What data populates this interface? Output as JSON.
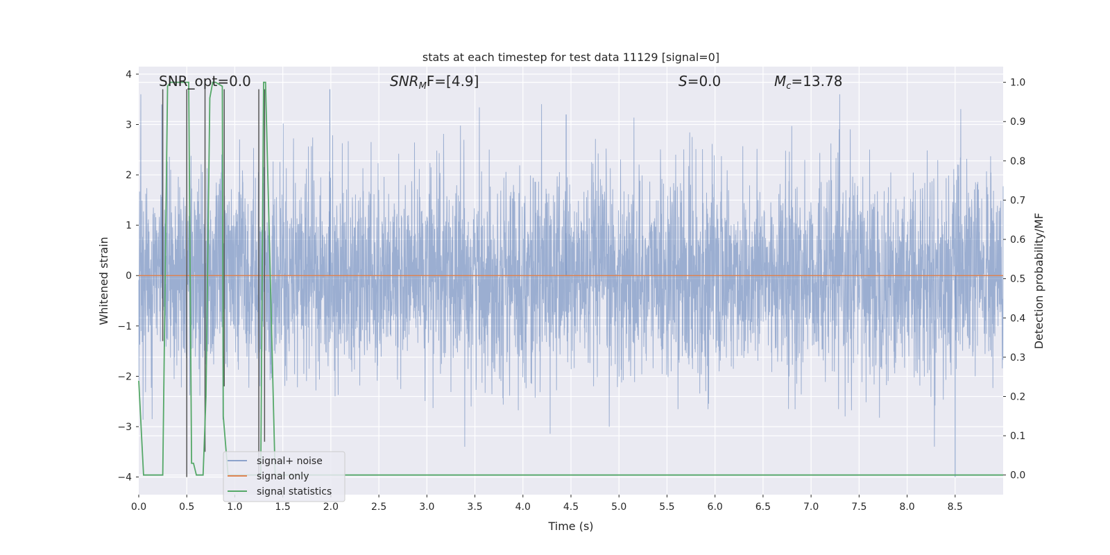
{
  "chart_data": {
    "type": "line",
    "title": "stats at each timestep for test data 11129 [signal=0]",
    "xlabel": "Time (s)",
    "ylabel": "Whitened strain",
    "y2label": "Detection probability/MF",
    "xlim": [
      0.0,
      9.0
    ],
    "ylim": [
      -4.35,
      4.15
    ],
    "y2lim": [
      -0.05,
      1.04
    ],
    "xticks": [
      0.0,
      0.5,
      1.0,
      1.5,
      2.0,
      2.5,
      3.0,
      3.5,
      4.0,
      4.5,
      5.0,
      5.5,
      6.0,
      6.5,
      7.0,
      7.5,
      8.0,
      8.5
    ],
    "xtick_labels": [
      "0.0",
      "0.5",
      "1.0",
      "1.5",
      "2.0",
      "2.5",
      "3.0",
      "3.5",
      "4.0",
      "4.5",
      "5.0",
      "5.5",
      "6.0",
      "6.5",
      "7.0",
      "7.5",
      "8.0",
      "8.5"
    ],
    "yticks": [
      -4,
      -3,
      -2,
      -1,
      0,
      1,
      2,
      3,
      4
    ],
    "ytick_labels": [
      "−4",
      "−3",
      "−2",
      "−1",
      "0",
      "1",
      "2",
      "3",
      "4"
    ],
    "y2ticks": [
      0.0,
      0.1,
      0.2,
      0.3,
      0.4,
      0.5,
      0.6,
      0.7,
      0.8,
      0.9,
      1.0
    ],
    "y2tick_labels": [
      "0.0",
      "0.1",
      "0.2",
      "0.3",
      "0.4",
      "0.5",
      "0.6",
      "0.7",
      "0.8",
      "0.9",
      "1.0"
    ],
    "grid": true,
    "legend_position": "lower-left",
    "colors": {
      "noise": "#4c72b0",
      "signal": "#dd8452",
      "stats": "#55a868",
      "marker": "#555555",
      "plot_bg": "#eaeaf2",
      "grid": "#ffffff"
    },
    "series": [
      {
        "name": "signal+ noise",
        "axis": "left",
        "description_envelope": "dense noise roughly within ±3.5, mostly ±2",
        "peaks": [
          {
            "x": 0.24,
            "y": 3.4
          },
          {
            "x": 1.99,
            "y": 3.7
          },
          {
            "x": 4.45,
            "y": 3.2
          },
          {
            "x": 8.5,
            "y": -4.0
          }
        ]
      },
      {
        "name": "signal only",
        "axis": "left",
        "x": [
          0.0,
          9.0
        ],
        "y": [
          0.0,
          0.0
        ]
      },
      {
        "name": "signal statistics",
        "axis": "right",
        "x": [
          0.0,
          0.05,
          0.1,
          0.25,
          0.27,
          0.3,
          0.33,
          0.4,
          0.5,
          0.52,
          0.55,
          0.57,
          0.6,
          0.67,
          0.7,
          0.74,
          0.77,
          0.8,
          0.87,
          0.88,
          0.93,
          1.27,
          1.3,
          1.32,
          1.42,
          1.5,
          9.0
        ],
        "y": [
          0.24,
          0.0,
          0.0,
          0.0,
          0.4,
          0.99,
          1.0,
          1.0,
          1.0,
          1.0,
          0.03,
          0.03,
          0.0,
          0.0,
          0.2,
          0.96,
          1.0,
          1.0,
          0.99,
          0.15,
          0.0,
          0.0,
          1.0,
          1.0,
          0.0,
          0.0,
          0.0
        ]
      }
    ],
    "markers": [
      {
        "x": 0.25,
        "y_top": 3.7,
        "y_bottom": -1.3
      },
      {
        "x": 0.5,
        "y_top": 3.7,
        "y_bottom": -4.0
      },
      {
        "x": 0.69,
        "y_top": 3.7,
        "y_bottom": -3.5
      },
      {
        "x": 0.89,
        "y_top": 3.7,
        "y_bottom": -2.2
      },
      {
        "x": 1.25,
        "y_top": 3.7,
        "y_bottom": -4.0
      },
      {
        "x": 1.31,
        "y_top": 3.7,
        "y_bottom": -3.3
      }
    ],
    "annotations": [
      {
        "text": "SNR_opt=0.0",
        "x": 0.2
      },
      {
        "text": "F=[4.9]",
        "x": 2.6,
        "math_prefix": "SNR",
        "math_sub": "M"
      },
      {
        "text": "=0.0",
        "x": 5.6,
        "math_prefix": "S"
      },
      {
        "text": "=13.78",
        "x": 6.6,
        "math_prefix": "M",
        "math_sub": "c"
      }
    ]
  }
}
